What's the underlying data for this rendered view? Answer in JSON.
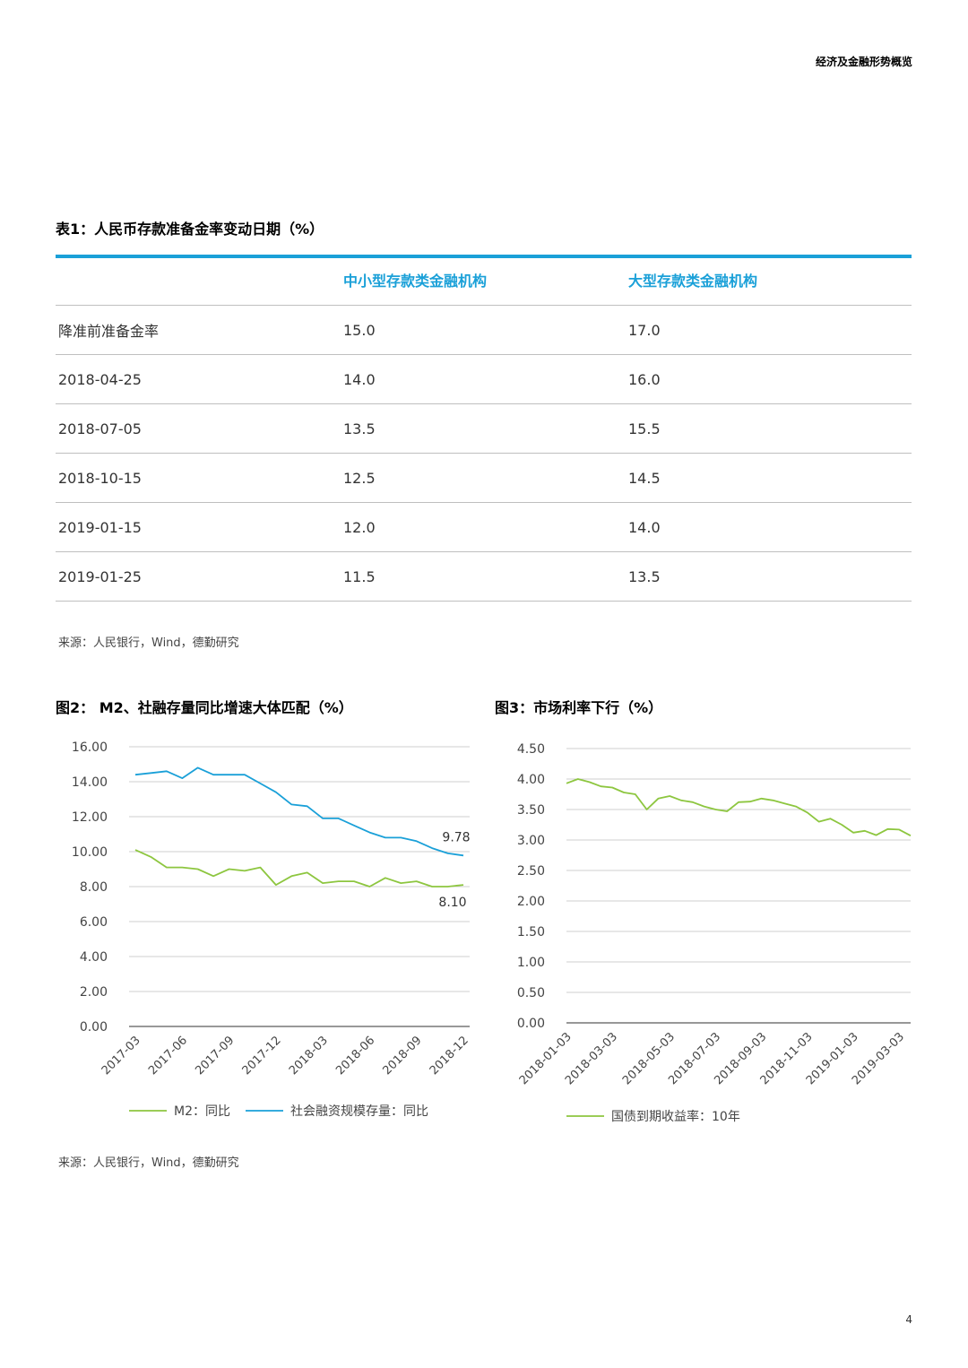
{
  "header": {
    "title": "经济及金融形势概览"
  },
  "table1": {
    "title": "表1：人民币存款准备金率变动日期（%）",
    "columns": [
      "",
      "中小型存款类金融机构",
      "大型存款类金融机构"
    ],
    "rows": [
      [
        "降准前准备金率",
        "15.0",
        "17.0"
      ],
      [
        "2018-04-25",
        "14.0",
        "16.0"
      ],
      [
        "2018-07-05",
        "13.5",
        "15.5"
      ],
      [
        "2018-10-15",
        "12.5",
        "14.5"
      ],
      [
        "2019-01-15",
        "12.0",
        "14.0"
      ],
      [
        "2019-01-25",
        "11.5",
        "13.5"
      ]
    ],
    "source": "来源：人民银行，Wind，德勤研究"
  },
  "chart_data": [
    {
      "type": "line",
      "title": "图2： M2、社融存量同比增速大体匹配（%）",
      "ylim": [
        0,
        16
      ],
      "yticks": [
        "0.00",
        "2.00",
        "4.00",
        "6.00",
        "8.00",
        "10.00",
        "12.00",
        "14.00",
        "16.00"
      ],
      "xtick_labels": [
        "2017-03",
        "2017-06",
        "2017-09",
        "2017-12",
        "2018-03",
        "2018-06",
        "2018-09",
        "2018-12"
      ],
      "x": [
        "2017-03",
        "2017-04",
        "2017-05",
        "2017-06",
        "2017-07",
        "2017-08",
        "2017-09",
        "2017-10",
        "2017-11",
        "2017-12",
        "2018-01",
        "2018-02",
        "2018-03",
        "2018-04",
        "2018-05",
        "2018-06",
        "2018-07",
        "2018-08",
        "2018-09",
        "2018-10",
        "2018-11",
        "2018-12"
      ],
      "series": [
        {
          "name": "M2：同比",
          "color": "#8dc63f",
          "values": [
            10.1,
            9.7,
            9.1,
            9.1,
            9.0,
            8.6,
            9.0,
            8.9,
            9.1,
            8.1,
            8.6,
            8.8,
            8.2,
            8.3,
            8.3,
            8.0,
            8.5,
            8.2,
            8.3,
            8.0,
            8.0,
            8.1
          ]
        },
        {
          "name": "社会融资规模存量：同比",
          "color": "#1aa0d8",
          "values": [
            14.4,
            14.5,
            14.6,
            14.2,
            14.8,
            14.4,
            14.4,
            14.4,
            13.9,
            13.4,
            12.7,
            12.6,
            11.9,
            11.9,
            11.5,
            11.1,
            10.8,
            10.8,
            10.6,
            10.2,
            9.9,
            9.78
          ]
        }
      ],
      "annotations": [
        "9.78",
        "8.10"
      ],
      "legend": "bottom"
    },
    {
      "type": "line",
      "title": "图3：市场利率下行（%）",
      "ylim": [
        0,
        4.5
      ],
      "yticks": [
        "0.00",
        "0.50",
        "1.00",
        "1.50",
        "2.00",
        "2.50",
        "3.00",
        "3.50",
        "4.00",
        "4.50"
      ],
      "xtick_labels": [
        "2018-01-03",
        "2018-03-03",
        "2018-05-03",
        "2018-07-03",
        "2018-09-03",
        "2018-11-03",
        "2019-01-03",
        "2019-03-03"
      ],
      "x": [
        "2018-01-03",
        "2018-01-20",
        "2018-02-05",
        "2018-02-20",
        "2018-03-03",
        "2018-03-15",
        "2018-03-25",
        "2018-04-03",
        "2018-04-20",
        "2018-05-03",
        "2018-05-20",
        "2018-06-03",
        "2018-06-20",
        "2018-07-03",
        "2018-07-20",
        "2018-08-03",
        "2018-08-20",
        "2018-09-03",
        "2018-09-20",
        "2018-10-03",
        "2018-10-20",
        "2018-11-03",
        "2018-11-20",
        "2018-12-03",
        "2018-12-20",
        "2019-01-03",
        "2019-01-20",
        "2019-02-03",
        "2019-02-20",
        "2019-03-03",
        "2019-03-20"
      ],
      "series": [
        {
          "name": "国债到期收益率：10年",
          "color": "#8dc63f",
          "values": [
            3.93,
            4.0,
            3.95,
            3.88,
            3.86,
            3.78,
            3.75,
            3.5,
            3.68,
            3.72,
            3.65,
            3.62,
            3.55,
            3.5,
            3.47,
            3.62,
            3.63,
            3.68,
            3.65,
            3.6,
            3.55,
            3.45,
            3.3,
            3.35,
            3.25,
            3.12,
            3.15,
            3.08,
            3.18,
            3.17,
            3.07
          ]
        }
      ],
      "legend": "bottom"
    }
  ],
  "chart2_source": "来源：人民银行，Wind，德勤研究",
  "page_number": "4"
}
